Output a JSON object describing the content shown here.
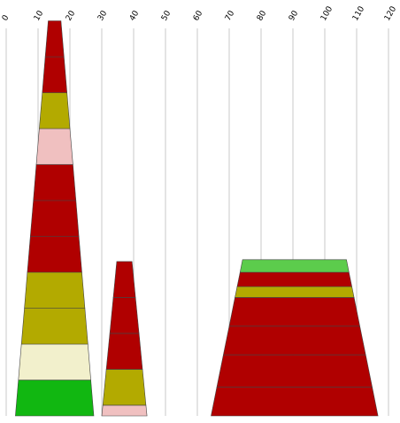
{
  "chart_data": {
    "type": "stacked-trapezoid",
    "title": "",
    "xlabel": "",
    "ylabel": "",
    "xlim": [
      0,
      120
    ],
    "x_ticks": [
      "0",
      "10",
      "20",
      "30",
      "40",
      "50",
      "60",
      "70",
      "80",
      "90",
      "100",
      "110",
      "120"
    ],
    "tick_label_rotation": -60,
    "grid": true,
    "legend": "none",
    "series": [
      {
        "x_center": 15.2,
        "bottom_half_width": 12.3,
        "top_half_width": 2.0,
        "layers": [
          {
            "height": 1.0,
            "color": "#11b711"
          },
          {
            "height": 1.0,
            "color": "#f2f0cc"
          },
          {
            "height": 1.0,
            "color": "#b3aa00"
          },
          {
            "height": 1.0,
            "color": "#b3aa00"
          },
          {
            "height": 1.0,
            "color": "#b00000"
          },
          {
            "height": 1.0,
            "color": "#b00000"
          },
          {
            "height": 1.0,
            "color": "#b00000"
          },
          {
            "height": 1.0,
            "color": "#f0c0c0"
          },
          {
            "height": 1.0,
            "color": "#b3aa00"
          },
          {
            "height": 1.0,
            "color": "#b00000"
          },
          {
            "height": 1.0,
            "color": "#b00000"
          }
        ]
      },
      {
        "x_center": 37.1,
        "bottom_half_width": 7.1,
        "top_half_width": 2.4,
        "layers": [
          {
            "height": 0.3,
            "color": "#f0c0c0"
          },
          {
            "height": 1.0,
            "color": "#b3aa00"
          },
          {
            "height": 1.0,
            "color": "#b00000"
          },
          {
            "height": 1.0,
            "color": "#b00000"
          },
          {
            "height": 1.0,
            "color": "#b00000"
          }
        ]
      },
      {
        "x_center": 90.5,
        "bottom_half_width": 26.2,
        "top_half_width": 16.3,
        "layers": [
          {
            "height": 0.8,
            "color": "#b00000"
          },
          {
            "height": 0.9,
            "color": "#b00000"
          },
          {
            "height": 0.8,
            "color": "#b00000"
          },
          {
            "height": 0.8,
            "color": "#b00000"
          },
          {
            "height": 0.3,
            "color": "#b3aa00"
          },
          {
            "height": 0.4,
            "color": "#b00000"
          },
          {
            "height": 0.35,
            "color": "#5ccc4c"
          }
        ]
      }
    ]
  }
}
